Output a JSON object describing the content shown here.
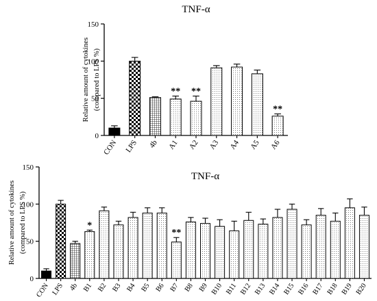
{
  "chart_data": [
    {
      "type": "bar",
      "title": "TNF-α",
      "ylabel_line1": "Relative amount of cytokines",
      "ylabel_line2": "(compared to LPS %)",
      "ylim": [
        0,
        150
      ],
      "yticks": [
        "0",
        "50",
        "100",
        "150"
      ],
      "categories": [
        "CON",
        "LPS",
        "4b",
        "A1",
        "A2",
        "A3",
        "A4",
        "A5",
        "A6"
      ],
      "values": [
        10,
        100,
        51,
        49,
        46,
        91,
        92,
        83,
        26
      ],
      "errors": [
        3,
        5,
        1,
        4,
        7,
        3,
        4,
        5,
        3
      ],
      "significance": [
        "",
        "",
        "",
        "**",
        "**",
        "",
        "",
        "",
        "**"
      ],
      "patterns": [
        "solid",
        "checker",
        "grid",
        "dots",
        "dots",
        "dots",
        "dots",
        "dots",
        "dots"
      ]
    },
    {
      "type": "bar",
      "title": "TNF-α",
      "ylabel_line1": "Relative amount of cytokines",
      "ylabel_line2": "(compared to LPS %)",
      "ylim": [
        0,
        150
      ],
      "yticks": [
        "0",
        "50",
        "100",
        "150"
      ],
      "categories": [
        "CON",
        "LPS",
        "4b",
        "B1",
        "B2",
        "B3",
        "B4",
        "B5",
        "B6",
        "B7",
        "B8",
        "B9",
        "B10",
        "B11",
        "B12",
        "B13",
        "B14",
        "B15",
        "B16",
        "B17",
        "B18",
        "B19",
        "B20"
      ],
      "values": [
        10,
        100,
        47,
        63,
        91,
        72,
        82,
        88,
        88,
        49,
        76,
        74,
        70,
        64,
        78,
        73,
        82,
        93,
        72,
        85,
        77,
        95,
        85
      ],
      "errors": [
        3,
        5,
        3,
        2,
        5,
        5,
        7,
        7,
        7,
        6,
        6,
        7,
        9,
        13,
        11,
        7,
        11,
        7,
        7,
        9,
        11,
        12,
        11
      ],
      "significance": [
        "",
        "",
        "",
        "*",
        "",
        "",
        "",
        "",
        "",
        "**",
        "",
        "",
        "",
        "",
        "",
        "",
        "",
        "",
        "",
        "",
        "",
        "",
        ""
      ],
      "patterns": [
        "solid",
        "checker",
        "grid",
        "dots",
        "dots",
        "dots",
        "dots",
        "dots",
        "dots",
        "dots",
        "dots",
        "dots",
        "dots",
        "dots",
        "dots",
        "dots",
        "dots",
        "dots",
        "dots",
        "dots",
        "dots",
        "dots",
        "dots"
      ]
    }
  ]
}
